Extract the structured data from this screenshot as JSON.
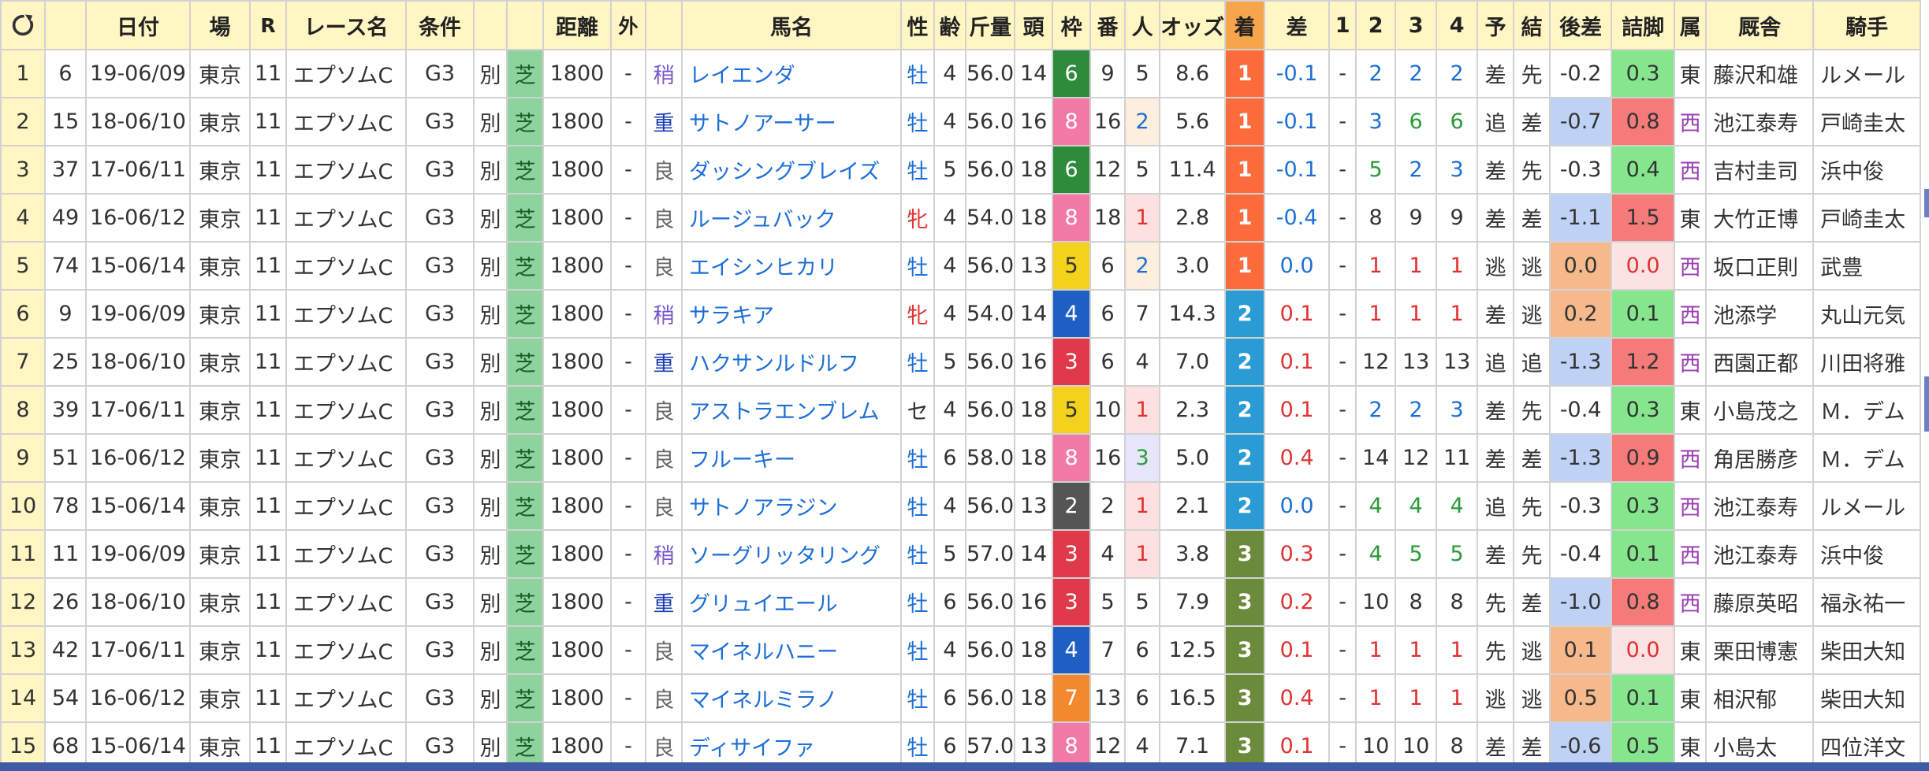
{
  "headers": [
    "日付",
    "場",
    "R",
    "レース名",
    "条件",
    "",
    "",
    "距離",
    "外",
    "",
    "馬名",
    "性",
    "齢",
    "斤量",
    "頭",
    "枠",
    "番",
    "人",
    "オッズ",
    "着",
    "差",
    "1",
    "2",
    "3",
    "4",
    "予",
    "結",
    "後差",
    "詰脚",
    "属",
    "厩舎",
    "騎手"
  ],
  "rows": [
    {
      "n": "1",
      "id": "6",
      "date": "19-06/09",
      "place": "東京",
      "r": "11",
      "race": "エプソムC",
      "grade": "G3",
      "sp": "別",
      "track": "芝",
      "dist": "1800",
      "out": "-",
      "cond": "稍",
      "horse": "レイエンダ",
      "sex": "牡",
      "age": "4",
      "kin": "56.0",
      "heads": "14",
      "waku": "6",
      "ban": "9",
      "pop": "5",
      "odds": "8.6",
      "fin": "1",
      "diff": "-0.1",
      "c1": "-",
      "c2": "2",
      "c3": "2",
      "c4": "2",
      "yo": "差",
      "ke": "先",
      "ato": "-0.2",
      "tsume": "0.3",
      "affil": "東",
      "trainer": "藤沢和雄",
      "jockey": "ルメール"
    },
    {
      "n": "2",
      "id": "15",
      "date": "18-06/10",
      "place": "東京",
      "r": "11",
      "race": "エプソムC",
      "grade": "G3",
      "sp": "別",
      "track": "芝",
      "dist": "1800",
      "out": "-",
      "cond": "重",
      "horse": "サトノアーサー",
      "sex": "牡",
      "age": "4",
      "kin": "56.0",
      "heads": "16",
      "waku": "8",
      "ban": "16",
      "pop": "2",
      "odds": "5.6",
      "fin": "1",
      "diff": "-0.1",
      "c1": "-",
      "c2": "3",
      "c3": "6",
      "c4": "6",
      "yo": "追",
      "ke": "差",
      "ato": "-0.7",
      "tsume": "0.8",
      "affil": "西",
      "trainer": "池江泰寿",
      "jockey": "戸崎圭太"
    },
    {
      "n": "3",
      "id": "37",
      "date": "17-06/11",
      "place": "東京",
      "r": "11",
      "race": "エプソムC",
      "grade": "G3",
      "sp": "別",
      "track": "芝",
      "dist": "1800",
      "out": "-",
      "cond": "良",
      "horse": "ダッシングブレイズ",
      "sex": "牡",
      "age": "5",
      "kin": "56.0",
      "heads": "18",
      "waku": "6",
      "ban": "12",
      "pop": "5",
      "odds": "11.4",
      "fin": "1",
      "diff": "-0.1",
      "c1": "-",
      "c2": "5",
      "c3": "2",
      "c4": "3",
      "yo": "差",
      "ke": "先",
      "ato": "-0.3",
      "tsume": "0.4",
      "affil": "西",
      "trainer": "吉村圭司",
      "jockey": "浜中俊"
    },
    {
      "n": "4",
      "id": "49",
      "date": "16-06/12",
      "place": "東京",
      "r": "11",
      "race": "エプソムC",
      "grade": "G3",
      "sp": "別",
      "track": "芝",
      "dist": "1800",
      "out": "-",
      "cond": "良",
      "horse": "ルージュバック",
      "sex": "牝",
      "age": "4",
      "kin": "54.0",
      "heads": "18",
      "waku": "8",
      "ban": "18",
      "pop": "1",
      "odds": "2.8",
      "fin": "1",
      "diff": "-0.4",
      "c1": "-",
      "c2": "8",
      "c3": "9",
      "c4": "9",
      "yo": "差",
      "ke": "差",
      "ato": "-1.1",
      "tsume": "1.5",
      "affil": "東",
      "trainer": "大竹正博",
      "jockey": "戸崎圭太"
    },
    {
      "n": "5",
      "id": "74",
      "date": "15-06/14",
      "place": "東京",
      "r": "11",
      "race": "エプソムC",
      "grade": "G3",
      "sp": "別",
      "track": "芝",
      "dist": "1800",
      "out": "-",
      "cond": "良",
      "horse": "エイシンヒカリ",
      "sex": "牡",
      "age": "4",
      "kin": "56.0",
      "heads": "13",
      "waku": "5",
      "ban": "6",
      "pop": "2",
      "odds": "3.0",
      "fin": "1",
      "diff": "0.0",
      "c1": "-",
      "c2": "1",
      "c3": "1",
      "c4": "1",
      "yo": "逃",
      "ke": "逃",
      "ato": "0.0",
      "tsume": "0.0",
      "affil": "西",
      "trainer": "坂口正則",
      "jockey": "武豊"
    },
    {
      "n": "6",
      "id": "9",
      "date": "19-06/09",
      "place": "東京",
      "r": "11",
      "race": "エプソムC",
      "grade": "G3",
      "sp": "別",
      "track": "芝",
      "dist": "1800",
      "out": "-",
      "cond": "稍",
      "horse": "サラキア",
      "sex": "牝",
      "age": "4",
      "kin": "54.0",
      "heads": "14",
      "waku": "4",
      "ban": "6",
      "pop": "7",
      "odds": "14.3",
      "fin": "2",
      "diff": "0.1",
      "c1": "-",
      "c2": "1",
      "c3": "1",
      "c4": "1",
      "yo": "差",
      "ke": "逃",
      "ato": "0.2",
      "tsume": "0.1",
      "affil": "西",
      "trainer": "池添学",
      "jockey": "丸山元気"
    },
    {
      "n": "7",
      "id": "25",
      "date": "18-06/10",
      "place": "東京",
      "r": "11",
      "race": "エプソムC",
      "grade": "G3",
      "sp": "別",
      "track": "芝",
      "dist": "1800",
      "out": "-",
      "cond": "重",
      "horse": "ハクサンルドルフ",
      "sex": "牡",
      "age": "5",
      "kin": "56.0",
      "heads": "16",
      "waku": "3",
      "ban": "6",
      "pop": "4",
      "odds": "7.0",
      "fin": "2",
      "diff": "0.1",
      "c1": "-",
      "c2": "12",
      "c3": "13",
      "c4": "13",
      "yo": "追",
      "ke": "追",
      "ato": "-1.3",
      "tsume": "1.2",
      "affil": "西",
      "trainer": "西園正都",
      "jockey": "川田将雅"
    },
    {
      "n": "8",
      "id": "39",
      "date": "17-06/11",
      "place": "東京",
      "r": "11",
      "race": "エプソムC",
      "grade": "G3",
      "sp": "別",
      "track": "芝",
      "dist": "1800",
      "out": "-",
      "cond": "良",
      "horse": "アストラエンブレム",
      "sex": "セ",
      "age": "4",
      "kin": "56.0",
      "heads": "18",
      "waku": "5",
      "ban": "10",
      "pop": "1",
      "odds": "2.3",
      "fin": "2",
      "diff": "0.1",
      "c1": "-",
      "c2": "2",
      "c3": "2",
      "c4": "3",
      "yo": "差",
      "ke": "先",
      "ato": "-0.4",
      "tsume": "0.3",
      "affil": "東",
      "trainer": "小島茂之",
      "jockey": "Ｍ．デム"
    },
    {
      "n": "9",
      "id": "51",
      "date": "16-06/12",
      "place": "東京",
      "r": "11",
      "race": "エプソムC",
      "grade": "G3",
      "sp": "別",
      "track": "芝",
      "dist": "1800",
      "out": "-",
      "cond": "良",
      "horse": "フルーキー",
      "sex": "牡",
      "age": "6",
      "kin": "58.0",
      "heads": "18",
      "waku": "8",
      "ban": "16",
      "pop": "3",
      "odds": "5.0",
      "fin": "2",
      "diff": "0.4",
      "c1": "-",
      "c2": "14",
      "c3": "12",
      "c4": "11",
      "yo": "差",
      "ke": "差",
      "ato": "-1.3",
      "tsume": "0.9",
      "affil": "西",
      "trainer": "角居勝彦",
      "jockey": "Ｍ．デム"
    },
    {
      "n": "10",
      "id": "78",
      "date": "15-06/14",
      "place": "東京",
      "r": "11",
      "race": "エプソムC",
      "grade": "G3",
      "sp": "別",
      "track": "芝",
      "dist": "1800",
      "out": "-",
      "cond": "良",
      "horse": "サトノアラジン",
      "sex": "牡",
      "age": "4",
      "kin": "56.0",
      "heads": "13",
      "waku": "2",
      "ban": "2",
      "pop": "1",
      "odds": "2.1",
      "fin": "2",
      "diff": "0.0",
      "c1": "-",
      "c2": "4",
      "c3": "4",
      "c4": "4",
      "yo": "追",
      "ke": "先",
      "ato": "-0.3",
      "tsume": "0.3",
      "affil": "西",
      "trainer": "池江泰寿",
      "jockey": "ルメール"
    },
    {
      "n": "11",
      "id": "11",
      "date": "19-06/09",
      "place": "東京",
      "r": "11",
      "race": "エプソムC",
      "grade": "G3",
      "sp": "別",
      "track": "芝",
      "dist": "1800",
      "out": "-",
      "cond": "稍",
      "horse": "ソーグリッタリング",
      "sex": "牡",
      "age": "5",
      "kin": "57.0",
      "heads": "14",
      "waku": "3",
      "ban": "4",
      "pop": "1",
      "odds": "3.8",
      "fin": "3",
      "diff": "0.3",
      "c1": "-",
      "c2": "4",
      "c3": "5",
      "c4": "5",
      "yo": "差",
      "ke": "先",
      "ato": "-0.4",
      "tsume": "0.1",
      "affil": "西",
      "trainer": "池江泰寿",
      "jockey": "浜中俊"
    },
    {
      "n": "12",
      "id": "26",
      "date": "18-06/10",
      "place": "東京",
      "r": "11",
      "race": "エプソムC",
      "grade": "G3",
      "sp": "別",
      "track": "芝",
      "dist": "1800",
      "out": "-",
      "cond": "重",
      "horse": "グリュイエール",
      "sex": "牡",
      "age": "6",
      "kin": "56.0",
      "heads": "16",
      "waku": "3",
      "ban": "5",
      "pop": "5",
      "odds": "7.9",
      "fin": "3",
      "diff": "0.2",
      "c1": "-",
      "c2": "10",
      "c3": "8",
      "c4": "8",
      "yo": "先",
      "ke": "差",
      "ato": "-1.0",
      "tsume": "0.8",
      "affil": "西",
      "trainer": "藤原英昭",
      "jockey": "福永祐一"
    },
    {
      "n": "13",
      "id": "42",
      "date": "17-06/11",
      "place": "東京",
      "r": "11",
      "race": "エプソムC",
      "grade": "G3",
      "sp": "別",
      "track": "芝",
      "dist": "1800",
      "out": "-",
      "cond": "良",
      "horse": "マイネルハニー",
      "sex": "牡",
      "age": "4",
      "kin": "56.0",
      "heads": "18",
      "waku": "4",
      "ban": "7",
      "pop": "6",
      "odds": "12.5",
      "fin": "3",
      "diff": "0.1",
      "c1": "-",
      "c2": "1",
      "c3": "1",
      "c4": "1",
      "yo": "先",
      "ke": "逃",
      "ato": "0.1",
      "tsume": "0.0",
      "affil": "東",
      "trainer": "栗田博憲",
      "jockey": "柴田大知"
    },
    {
      "n": "14",
      "id": "54",
      "date": "16-06/12",
      "place": "東京",
      "r": "11",
      "race": "エプソムC",
      "grade": "G3",
      "sp": "別",
      "track": "芝",
      "dist": "1800",
      "out": "-",
      "cond": "良",
      "horse": "マイネルミラノ",
      "sex": "牡",
      "age": "6",
      "kin": "56.0",
      "heads": "18",
      "waku": "7",
      "ban": "13",
      "pop": "6",
      "odds": "16.5",
      "fin": "3",
      "diff": "0.4",
      "c1": "-",
      "c2": "1",
      "c3": "1",
      "c4": "1",
      "yo": "逃",
      "ke": "逃",
      "ato": "0.5",
      "tsume": "0.1",
      "affil": "東",
      "trainer": "相沢郁",
      "jockey": "柴田大知"
    },
    {
      "n": "15",
      "id": "68",
      "date": "15-06/14",
      "place": "東京",
      "r": "11",
      "race": "エプソムC",
      "grade": "G3",
      "sp": "別",
      "track": "芝",
      "dist": "1800",
      "out": "-",
      "cond": "良",
      "horse": "ディサイファ",
      "sex": "牡",
      "age": "6",
      "kin": "57.0",
      "heads": "13",
      "waku": "8",
      "ban": "12",
      "pop": "4",
      "odds": "7.1",
      "fin": "3",
      "diff": "0.1",
      "c1": "-",
      "c2": "10",
      "c3": "10",
      "c4": "8",
      "yo": "差",
      "ke": "差",
      "ato": "-0.6",
      "tsume": "0.5",
      "affil": "東",
      "trainer": "小島太",
      "jockey": "四位洋文"
    }
  ],
  "icons": {
    "reload": "reload-icon"
  }
}
